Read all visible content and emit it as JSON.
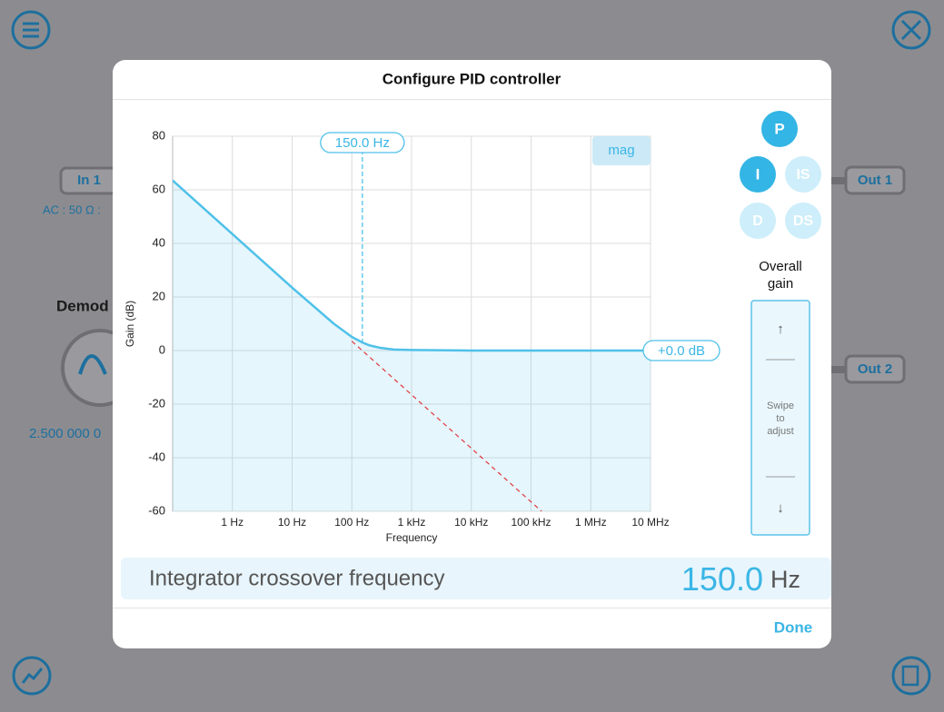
{
  "background": {
    "in1": "In 1",
    "in1_sub": "AC : 50 Ω : ",
    "demod": "Demod",
    "demod_freq": "2.500 000 0",
    "out1": "Out 1",
    "out2": "Out 2"
  },
  "dialog": {
    "title": "Configure PID controller",
    "buttons": [
      "P",
      "I",
      "IS",
      "D",
      "DS"
    ],
    "overall_gain": [
      "Overall",
      "gain"
    ],
    "gain_box": {
      "up": "↑",
      "hint": [
        "Swipe",
        "to",
        "adjust"
      ],
      "down": "↓"
    },
    "parameter": {
      "label": "Integrator crossover frequency",
      "value": "150.0",
      "unit": "Hz"
    },
    "done": "Done"
  },
  "chart_data": {
    "type": "line",
    "xlabel": "Frequency",
    "ylabel": "Gain (dB)",
    "tab": "mag",
    "xscale": "log",
    "xlim": [
      0.1,
      10000000
    ],
    "ylim": [
      -60,
      80
    ],
    "xticks": [
      {
        "value": 1,
        "label": "1 Hz"
      },
      {
        "value": 10,
        "label": "10 Hz"
      },
      {
        "value": 100,
        "label": "100 Hz"
      },
      {
        "value": 1000,
        "label": "1 kHz"
      },
      {
        "value": 10000,
        "label": "10 kHz"
      },
      {
        "value": 100000,
        "label": "100 kHz"
      },
      {
        "value": 1000000,
        "label": "1 MHz"
      },
      {
        "value": 10000000,
        "label": "10 MHz"
      }
    ],
    "yticks": [
      80,
      60,
      40,
      20,
      0,
      -20,
      -40,
      -60
    ],
    "grid": true,
    "series": [
      {
        "color": "#4fc1e9",
        "x": [
          0.1,
          1,
          10,
          50,
          100,
          150,
          200,
          300,
          500,
          1000,
          10000,
          100000,
          1000000,
          10000000
        ],
        "values": [
          63.5,
          43.5,
          23.5,
          10,
          5.1,
          3,
          1.9,
          1,
          0.4,
          0.2,
          0,
          0,
          0,
          0
        ]
      },
      {
        "color": "#e0393e",
        "x": [
          100,
          150000
        ],
        "values": [
          3.5,
          -60
        ]
      }
    ],
    "crossover": {
      "value": 150,
      "label": "150.0 Hz"
    },
    "gain_marker": {
      "value": 0,
      "label": "+0.0 dB"
    }
  }
}
